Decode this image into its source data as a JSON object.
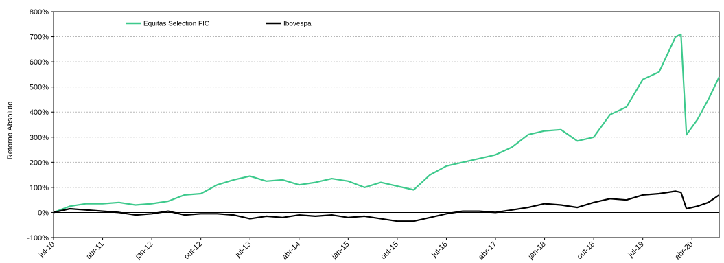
{
  "chart_data": {
    "type": "line",
    "title": "",
    "xlabel": "",
    "ylabel": "Retorno Absoluto",
    "ylim": [
      -100,
      800
    ],
    "y_unit": "%",
    "grid": true,
    "legend_position": "top",
    "x_tick_labels": [
      "jul-10",
      "abr-11",
      "jan-12",
      "out-12",
      "jul-13",
      "abr-14",
      "jan-15",
      "out-15",
      "jul-16",
      "abr-17",
      "jan-18",
      "out-18",
      "jul-19",
      "abr-20"
    ],
    "y_tick_labels": [
      "-100%",
      "0%",
      "100%",
      "200%",
      "300%",
      "400%",
      "500%",
      "600%",
      "700%",
      "800%"
    ],
    "y_ticks": [
      -100,
      0,
      100,
      200,
      300,
      400,
      500,
      600,
      700,
      800
    ],
    "x_range": [
      "2010-07",
      "2020-09"
    ],
    "series": [
      {
        "name": "Equitas Selection FIC",
        "color": "#3DC98C",
        "points": [
          [
            "2010-07",
            0
          ],
          [
            "2010-10",
            25
          ],
          [
            "2011-01",
            35
          ],
          [
            "2011-04",
            35
          ],
          [
            "2011-07",
            40
          ],
          [
            "2011-10",
            30
          ],
          [
            "2012-01",
            35
          ],
          [
            "2012-04",
            45
          ],
          [
            "2012-07",
            70
          ],
          [
            "2012-10",
            75
          ],
          [
            "2013-01",
            110
          ],
          [
            "2013-04",
            130
          ],
          [
            "2013-07",
            145
          ],
          [
            "2013-10",
            125
          ],
          [
            "2014-01",
            130
          ],
          [
            "2014-04",
            110
          ],
          [
            "2014-07",
            120
          ],
          [
            "2014-10",
            135
          ],
          [
            "2015-01",
            125
          ],
          [
            "2015-04",
            100
          ],
          [
            "2015-07",
            120
          ],
          [
            "2015-10",
            105
          ],
          [
            "2016-01",
            90
          ],
          [
            "2016-04",
            150
          ],
          [
            "2016-07",
            185
          ],
          [
            "2016-10",
            200
          ],
          [
            "2017-01",
            215
          ],
          [
            "2017-04",
            230
          ],
          [
            "2017-07",
            260
          ],
          [
            "2017-10",
            310
          ],
          [
            "2018-01",
            325
          ],
          [
            "2018-04",
            330
          ],
          [
            "2018-07",
            285
          ],
          [
            "2018-10",
            300
          ],
          [
            "2019-01",
            390
          ],
          [
            "2019-04",
            420
          ],
          [
            "2019-07",
            530
          ],
          [
            "2019-10",
            560
          ],
          [
            "2020-01",
            700
          ],
          [
            "2020-02",
            710
          ],
          [
            "2020-03",
            310
          ],
          [
            "2020-05",
            370
          ],
          [
            "2020-07",
            450
          ],
          [
            "2020-09",
            540
          ]
        ]
      },
      {
        "name": "Ibovespa",
        "color": "#000000",
        "points": [
          [
            "2010-07",
            0
          ],
          [
            "2010-10",
            15
          ],
          [
            "2011-01",
            10
          ],
          [
            "2011-04",
            5
          ],
          [
            "2011-07",
            0
          ],
          [
            "2011-10",
            -10
          ],
          [
            "2012-01",
            -5
          ],
          [
            "2012-04",
            5
          ],
          [
            "2012-07",
            -10
          ],
          [
            "2012-10",
            -5
          ],
          [
            "2013-01",
            -5
          ],
          [
            "2013-04",
            -10
          ],
          [
            "2013-07",
            -25
          ],
          [
            "2013-10",
            -15
          ],
          [
            "2014-01",
            -20
          ],
          [
            "2014-04",
            -10
          ],
          [
            "2014-07",
            -15
          ],
          [
            "2014-10",
            -10
          ],
          [
            "2015-01",
            -20
          ],
          [
            "2015-04",
            -15
          ],
          [
            "2015-07",
            -25
          ],
          [
            "2015-10",
            -35
          ],
          [
            "2016-01",
            -35
          ],
          [
            "2016-04",
            -20
          ],
          [
            "2016-07",
            -5
          ],
          [
            "2016-10",
            5
          ],
          [
            "2017-01",
            5
          ],
          [
            "2017-04",
            0
          ],
          [
            "2017-07",
            10
          ],
          [
            "2017-10",
            20
          ],
          [
            "2018-01",
            35
          ],
          [
            "2018-04",
            30
          ],
          [
            "2018-07",
            20
          ],
          [
            "2018-10",
            40
          ],
          [
            "2019-01",
            55
          ],
          [
            "2019-04",
            50
          ],
          [
            "2019-07",
            70
          ],
          [
            "2019-10",
            75
          ],
          [
            "2020-01",
            85
          ],
          [
            "2020-02",
            80
          ],
          [
            "2020-03",
            15
          ],
          [
            "2020-05",
            25
          ],
          [
            "2020-07",
            40
          ],
          [
            "2020-09",
            70
          ]
        ]
      }
    ]
  }
}
